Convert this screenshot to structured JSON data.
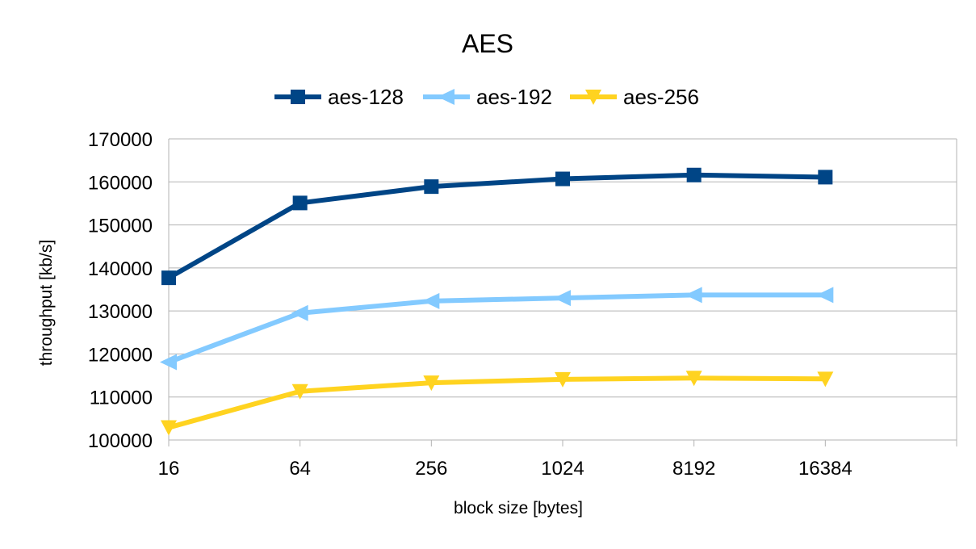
{
  "chart_data": {
    "type": "line",
    "title": "AES",
    "xlabel": "block size [bytes]",
    "ylabel": "throughput [kb/s]",
    "categories": [
      "16",
      "64",
      "256",
      "1024",
      "8192",
      "16384"
    ],
    "ylim": [
      100000,
      170000
    ],
    "yticks": [
      "100000",
      "110000",
      "120000",
      "130000",
      "140000",
      "150000",
      "160000",
      "170000"
    ],
    "grid": true,
    "legend_position": "top",
    "series": [
      {
        "name": "aes-128",
        "color": "#004586",
        "marker": "square",
        "values": [
          137700,
          155100,
          158900,
          160700,
          161600,
          161100
        ]
      },
      {
        "name": "aes-192",
        "color": "#83caff",
        "marker": "triangle-left",
        "values": [
          118100,
          129500,
          132300,
          133000,
          133700,
          133700
        ]
      },
      {
        "name": "aes-256",
        "color": "#ffd320",
        "marker": "triangle-down",
        "values": [
          102900,
          111300,
          113300,
          114100,
          114400,
          114200
        ]
      }
    ]
  }
}
